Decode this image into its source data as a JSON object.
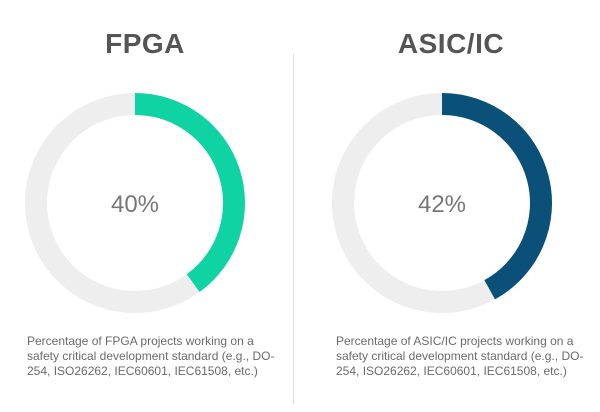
{
  "chart_data": [
    {
      "type": "pie",
      "title": "FPGA",
      "categories": [
        "FPGA"
      ],
      "values": [
        40
      ],
      "value_label": "40%",
      "max": 100,
      "color": "#0fd3a2",
      "track_color": "#eeeeee",
      "caption": "Percentage of FPGA projects working on a safety critical development standard (e.g., DO-254, ISO26262, IEC60601, IEC61508, etc.)"
    },
    {
      "type": "pie",
      "title": "ASIC/IC",
      "categories": [
        "ASIC/IC"
      ],
      "values": [
        42
      ],
      "value_label": "42%",
      "max": 100,
      "color": "#0b5078",
      "track_color": "#eeeeee",
      "caption": "Percentage of ASIC/IC projects working on a safety critical development standard (e.g., DO-254, ISO26262, IEC60601, IEC61508, etc.)"
    }
  ]
}
